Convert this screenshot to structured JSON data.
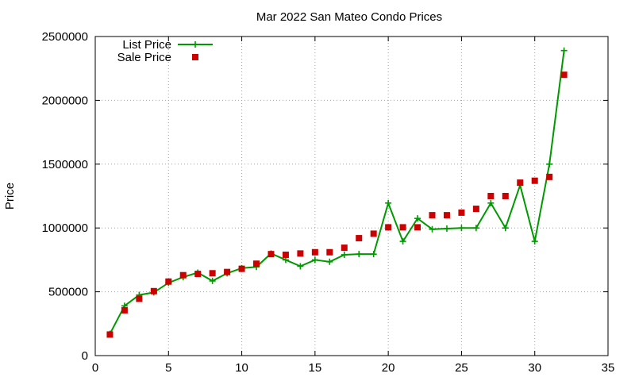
{
  "chart_data": {
    "type": "line",
    "title": "Mar 2022 San Mateo Condo Prices",
    "xlabel": "",
    "ylabel": "Price",
    "xlim": [
      0,
      35
    ],
    "ylim": [
      0,
      2500000
    ],
    "xticks": [
      0,
      5,
      10,
      15,
      20,
      25,
      30,
      35
    ],
    "yticks": [
      0,
      500000,
      1000000,
      1500000,
      2000000,
      2500000
    ],
    "grid": true,
    "legend_position": "top-left",
    "series": [
      {
        "name": "List Price",
        "style": "line-plus",
        "color": "#009900",
        "x": [
          1,
          2,
          3,
          4,
          5,
          6,
          7,
          8,
          9,
          10,
          11,
          12,
          13,
          14,
          15,
          16,
          17,
          18,
          19,
          20,
          21,
          22,
          23,
          24,
          25,
          26,
          27,
          28,
          29,
          30,
          31,
          32
        ],
        "values": [
          170000,
          390000,
          475000,
          495000,
          570000,
          615000,
          650000,
          585000,
          645000,
          685000,
          695000,
          800000,
          750000,
          700000,
          750000,
          735000,
          790000,
          795000,
          795000,
          1195000,
          895000,
          1075000,
          990000,
          995000,
          1000000,
          1000000,
          1195000,
          1000000,
          1335000,
          895000,
          1500000,
          2390000
        ]
      },
      {
        "name": "Sale Price",
        "style": "square",
        "color": "#cc0000",
        "x": [
          1,
          2,
          3,
          4,
          5,
          6,
          7,
          8,
          9,
          10,
          11,
          12,
          13,
          14,
          15,
          16,
          17,
          18,
          19,
          20,
          21,
          22,
          23,
          24,
          25,
          26,
          27,
          28,
          29,
          30,
          31,
          32
        ],
        "values": [
          165000,
          355000,
          445000,
          505000,
          580000,
          630000,
          640000,
          645000,
          655000,
          680000,
          720000,
          795000,
          790000,
          800000,
          810000,
          810000,
          845000,
          920000,
          955000,
          1005000,
          1005000,
          1005000,
          1100000,
          1100000,
          1120000,
          1150000,
          1250000,
          1250000,
          1355000,
          1370000,
          1400000,
          2200000
        ]
      }
    ]
  }
}
